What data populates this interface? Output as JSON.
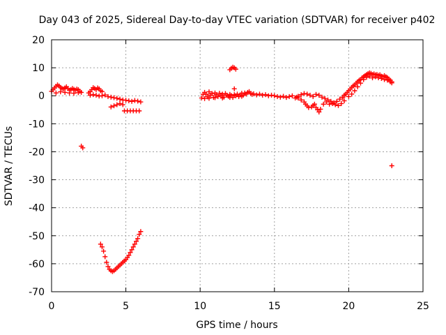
{
  "chart_data": {
    "type": "scatter",
    "title": "Day 043 of 2025, Sidereal Day-to-day VTEC variation (SDTVAR) for receiver p402",
    "xlabel": "GPS time / hours",
    "ylabel": "SDTVAR / TECUs",
    "xlim": [
      0,
      25
    ],
    "ylim": [
      -70,
      20
    ],
    "xticks": [
      0,
      5,
      10,
      15,
      20,
      25
    ],
    "yticks": [
      20,
      10,
      0,
      -10,
      -20,
      -30,
      -40,
      -50,
      -60,
      -70
    ],
    "grid": true,
    "marker": "+",
    "color": "#ff0000",
    "series": [
      {
        "name": "SDTVAR",
        "points": [
          [
            0.0,
            1.6
          ],
          [
            0.1,
            2.2
          ],
          [
            0.2,
            2.8
          ],
          [
            0.3,
            3.4
          ],
          [
            0.4,
            3.9
          ],
          [
            0.5,
            3.5
          ],
          [
            0.6,
            3.0
          ],
          [
            0.7,
            2.6
          ],
          [
            0.8,
            2.4
          ],
          [
            0.9,
            2.8
          ],
          [
            1.0,
            3.2
          ],
          [
            1.1,
            2.6
          ],
          [
            1.2,
            2.0
          ],
          [
            1.3,
            2.2
          ],
          [
            1.4,
            2.6
          ],
          [
            1.5,
            2.3
          ],
          [
            1.6,
            2.0
          ],
          [
            1.7,
            2.4
          ],
          [
            1.8,
            2.2
          ],
          [
            1.9,
            1.6
          ],
          [
            2.0,
            1.2
          ],
          [
            0.3,
            1.0
          ],
          [
            0.6,
            1.4
          ],
          [
            0.9,
            1.2
          ],
          [
            1.2,
            1.0
          ],
          [
            1.5,
            0.9
          ],
          [
            1.8,
            1.1
          ],
          [
            2.0,
            -18.0
          ],
          [
            2.1,
            -18.6
          ],
          [
            2.5,
            1.0
          ],
          [
            2.6,
            1.5
          ],
          [
            2.7,
            2.2
          ],
          [
            2.8,
            2.9
          ],
          [
            2.9,
            2.6
          ],
          [
            3.0,
            2.2
          ],
          [
            3.1,
            2.8
          ],
          [
            3.2,
            2.5
          ],
          [
            3.3,
            1.8
          ],
          [
            3.4,
            1.5
          ],
          [
            2.6,
            0.2
          ],
          [
            2.8,
            0.4
          ],
          [
            3.0,
            0.2
          ],
          [
            3.2,
            -0.1
          ],
          [
            3.4,
            0.0
          ],
          [
            3.6,
            0.3
          ],
          [
            3.8,
            -0.3
          ],
          [
            4.0,
            -0.5
          ],
          [
            4.2,
            -0.7
          ],
          [
            4.4,
            -0.9
          ],
          [
            4.6,
            -1.2
          ],
          [
            4.8,
            -1.5
          ],
          [
            5.0,
            -1.6
          ],
          [
            5.2,
            -1.8
          ],
          [
            5.4,
            -2.0
          ],
          [
            5.6,
            -1.7
          ],
          [
            5.8,
            -1.9
          ],
          [
            6.0,
            -2.2
          ],
          [
            4.0,
            -4.0
          ],
          [
            4.2,
            -3.6
          ],
          [
            4.4,
            -3.2
          ],
          [
            4.6,
            -2.8
          ],
          [
            4.8,
            -3.2
          ],
          [
            4.9,
            -5.4
          ],
          [
            5.1,
            -5.4
          ],
          [
            5.3,
            -5.4
          ],
          [
            5.5,
            -5.4
          ],
          [
            5.7,
            -5.4
          ],
          [
            5.9,
            -5.4
          ],
          [
            3.3,
            -53.0
          ],
          [
            3.4,
            -54.0
          ],
          [
            3.5,
            -55.5
          ],
          [
            3.6,
            -57.5
          ],
          [
            3.7,
            -59.5
          ],
          [
            3.8,
            -61.0
          ],
          [
            3.9,
            -62.0
          ],
          [
            4.0,
            -62.5
          ],
          [
            4.1,
            -62.8
          ],
          [
            4.2,
            -62.5
          ],
          [
            4.3,
            -62.0
          ],
          [
            4.4,
            -61.5
          ],
          [
            4.5,
            -61.0
          ],
          [
            4.6,
            -60.5
          ],
          [
            4.7,
            -60.0
          ],
          [
            4.8,
            -59.5
          ],
          [
            4.9,
            -59.0
          ],
          [
            5.0,
            -58.5
          ],
          [
            5.1,
            -57.8
          ],
          [
            5.2,
            -57.0
          ],
          [
            5.3,
            -56.0
          ],
          [
            5.4,
            -55.0
          ],
          [
            5.5,
            -54.0
          ],
          [
            5.6,
            -53.0
          ],
          [
            5.7,
            -52.0
          ],
          [
            5.8,
            -51.0
          ],
          [
            5.9,
            -49.5
          ],
          [
            6.0,
            -48.5
          ],
          [
            10.1,
            -0.8
          ],
          [
            10.2,
            0.5
          ],
          [
            10.3,
            1.2
          ],
          [
            10.4,
            0.6
          ],
          [
            10.5,
            -0.4
          ],
          [
            10.6,
            1.4
          ],
          [
            10.7,
            0.2
          ],
          [
            10.8,
            0.8
          ],
          [
            10.9,
            -0.6
          ],
          [
            11.0,
            1.0
          ],
          [
            11.1,
            0.4
          ],
          [
            11.2,
            -0.3
          ],
          [
            11.3,
            0.9
          ],
          [
            11.4,
            0.1
          ],
          [
            11.5,
            0.6
          ],
          [
            11.6,
            -0.5
          ],
          [
            11.7,
            0.8
          ],
          [
            11.8,
            0.2
          ],
          [
            11.9,
            -0.2
          ],
          [
            12.0,
            0.5
          ],
          [
            12.1,
            0.1
          ],
          [
            12.2,
            -0.6
          ],
          [
            12.3,
            0.4
          ],
          [
            12.4,
            0.0
          ],
          [
            12.5,
            0.6
          ],
          [
            12.6,
            -0.3
          ],
          [
            12.7,
            0.3
          ],
          [
            12.8,
            0.9
          ],
          [
            12.9,
            0.2
          ],
          [
            13.0,
            1.0
          ],
          [
            13.1,
            0.6
          ],
          [
            13.2,
            1.2
          ],
          [
            13.3,
            1.5
          ],
          [
            13.4,
            0.8
          ],
          [
            13.5,
            0.5
          ],
          [
            13.6,
            0.7
          ],
          [
            13.8,
            0.3
          ],
          [
            14.0,
            0.6
          ],
          [
            14.2,
            0.2
          ],
          [
            14.4,
            0.4
          ],
          [
            14.6,
            0.0
          ],
          [
            14.8,
            0.2
          ],
          [
            10.3,
            -1.0
          ],
          [
            10.6,
            -0.9
          ],
          [
            11.0,
            -0.7
          ],
          [
            11.5,
            -0.8
          ],
          [
            12.0,
            -0.6
          ],
          [
            12.8,
            -0.2
          ],
          [
            12.0,
            9.3
          ],
          [
            12.1,
            9.8
          ],
          [
            12.2,
            10.2
          ],
          [
            12.3,
            10.0
          ],
          [
            12.4,
            9.5
          ],
          [
            12.3,
            2.5
          ],
          [
            15.0,
            0.0
          ],
          [
            15.2,
            -0.3
          ],
          [
            15.4,
            -0.5
          ],
          [
            15.6,
            -0.2
          ],
          [
            15.8,
            -0.6
          ],
          [
            16.0,
            -0.3
          ],
          [
            16.2,
            0.0
          ],
          [
            16.4,
            -0.8
          ],
          [
            16.5,
            -0.5
          ],
          [
            16.6,
            -0.2
          ],
          [
            16.8,
            0.4
          ],
          [
            17.0,
            0.8
          ],
          [
            17.2,
            0.6
          ],
          [
            17.4,
            0.2
          ],
          [
            17.6,
            -0.3
          ],
          [
            17.8,
            0.5
          ],
          [
            18.0,
            0.2
          ],
          [
            18.2,
            -0.5
          ],
          [
            18.4,
            -1.0
          ],
          [
            18.6,
            -1.5
          ],
          [
            18.8,
            -2.0
          ],
          [
            19.0,
            -2.5
          ],
          [
            19.2,
            -2.0
          ],
          [
            19.4,
            -1.2
          ],
          [
            19.6,
            -0.5
          ],
          [
            16.6,
            -0.8
          ],
          [
            16.8,
            -1.5
          ],
          [
            17.0,
            -2.2
          ],
          [
            17.1,
            -3.0
          ],
          [
            17.2,
            -3.6
          ],
          [
            17.3,
            -4.2
          ],
          [
            17.5,
            -4.0
          ],
          [
            17.6,
            -3.5
          ],
          [
            17.7,
            -3.0
          ],
          [
            17.8,
            -4.2
          ],
          [
            17.9,
            -5.0
          ],
          [
            18.0,
            -5.8
          ],
          [
            18.1,
            -4.8
          ],
          [
            18.3,
            -3.0
          ],
          [
            18.5,
            -2.2
          ],
          [
            18.7,
            -3.0
          ],
          [
            18.9,
            -2.8
          ],
          [
            19.1,
            -3.2
          ],
          [
            19.3,
            -3.5
          ],
          [
            19.5,
            -2.8
          ],
          [
            19.7,
            -1.8
          ],
          [
            19.6,
            -0.6
          ],
          [
            19.7,
            0.2
          ],
          [
            19.8,
            0.6
          ],
          [
            19.9,
            1.2
          ],
          [
            20.0,
            1.8
          ],
          [
            20.1,
            2.4
          ],
          [
            20.2,
            3.0
          ],
          [
            20.3,
            3.5
          ],
          [
            20.4,
            3.9
          ],
          [
            20.5,
            4.5
          ],
          [
            20.6,
            5.0
          ],
          [
            20.7,
            5.5
          ],
          [
            20.8,
            5.8
          ],
          [
            20.9,
            6.4
          ],
          [
            21.0,
            6.8
          ],
          [
            21.1,
            7.2
          ],
          [
            21.2,
            7.6
          ],
          [
            21.3,
            7.9
          ],
          [
            21.4,
            8.2
          ],
          [
            21.5,
            8.0
          ],
          [
            21.6,
            7.6
          ],
          [
            21.7,
            7.8
          ],
          [
            21.8,
            7.5
          ],
          [
            21.9,
            7.6
          ],
          [
            22.0,
            7.3
          ],
          [
            22.1,
            7.5
          ],
          [
            22.2,
            7.0
          ],
          [
            22.3,
            6.8
          ],
          [
            22.4,
            7.2
          ],
          [
            22.5,
            6.8
          ],
          [
            22.6,
            6.5
          ],
          [
            22.7,
            6.0
          ],
          [
            22.8,
            5.5
          ],
          [
            22.9,
            5.0
          ],
          [
            20.0,
            -0.3
          ],
          [
            20.2,
            0.6
          ],
          [
            20.4,
            1.8
          ],
          [
            20.6,
            3.2
          ],
          [
            20.8,
            4.5
          ],
          [
            21.0,
            5.8
          ],
          [
            21.2,
            6.6
          ],
          [
            21.4,
            7.0
          ],
          [
            21.6,
            6.4
          ],
          [
            21.8,
            6.8
          ],
          [
            22.0,
            6.4
          ],
          [
            22.2,
            6.2
          ],
          [
            22.4,
            5.8
          ],
          [
            22.6,
            5.6
          ],
          [
            22.8,
            5.0
          ],
          [
            22.9,
            4.6
          ],
          [
            22.9,
            -25.0
          ]
        ]
      }
    ]
  }
}
